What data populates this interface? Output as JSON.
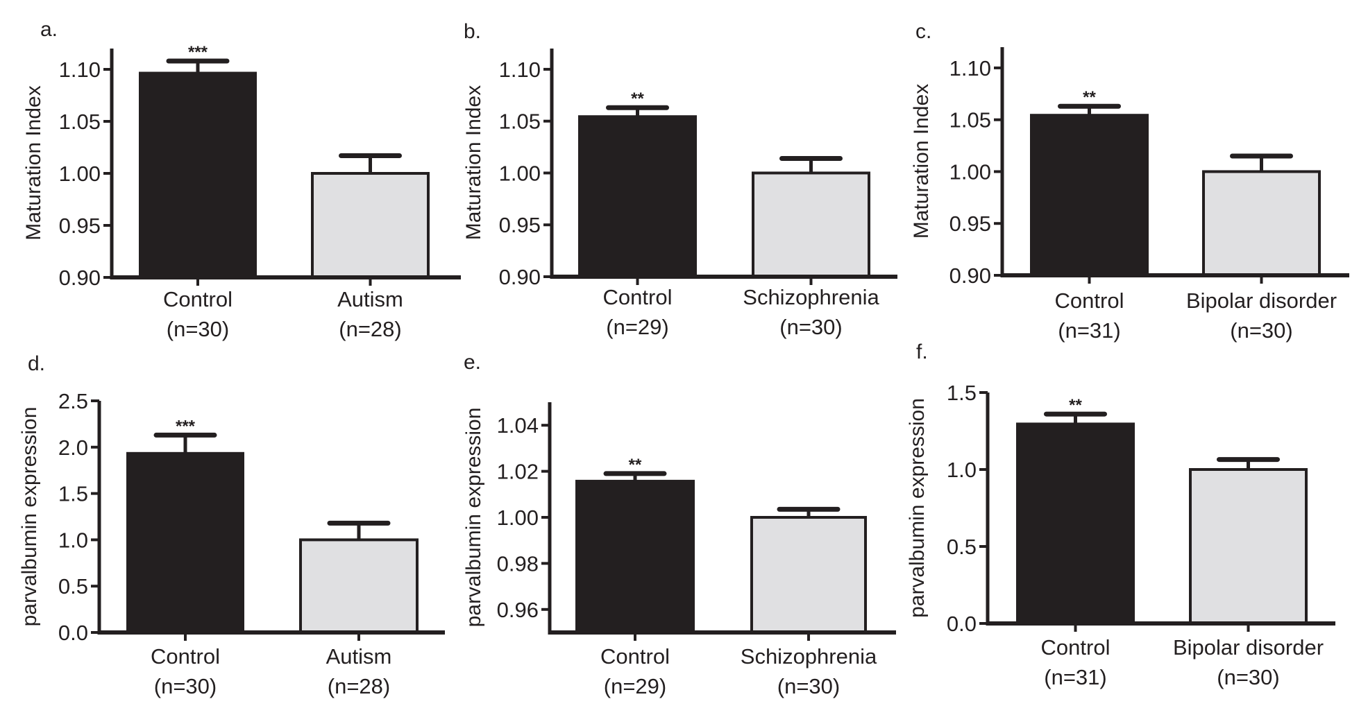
{
  "figure": {
    "colors": {
      "control": "#231f20",
      "patient": "#e0e0e2",
      "stroke": "#231f20"
    }
  },
  "chart_data": [
    {
      "panel": "a.",
      "type": "bar",
      "ylabel": "Maturation Index",
      "ylim": [
        0.9,
        1.12
      ],
      "yticks": [
        0.9,
        0.95,
        1.0,
        1.05,
        1.1
      ],
      "ytick_labels": [
        "0.90",
        "0.95",
        "1.00",
        "1.05",
        "1.10"
      ],
      "categories": [
        "Control",
        "Autism"
      ],
      "n_labels": [
        "(n=30)",
        "(n=28)"
      ],
      "values": [
        1.097,
        1.0
      ],
      "errors": [
        0.011,
        0.017
      ],
      "significance": [
        "***",
        ""
      ]
    },
    {
      "panel": "b.",
      "type": "bar",
      "ylabel": "Maturation Index",
      "ylim": [
        0.9,
        1.12
      ],
      "yticks": [
        0.9,
        0.95,
        1.0,
        1.05,
        1.1
      ],
      "ytick_labels": [
        "0.90",
        "0.95",
        "1.00",
        "1.05",
        "1.10"
      ],
      "categories": [
        "Control",
        "Schizophrenia"
      ],
      "n_labels": [
        "(n=29)",
        "(n=30)"
      ],
      "values": [
        1.055,
        1.0
      ],
      "errors": [
        0.008,
        0.014
      ],
      "significance": [
        "**",
        ""
      ]
    },
    {
      "panel": "c.",
      "type": "bar",
      "ylabel": "Maturation Index",
      "ylim": [
        0.9,
        1.12
      ],
      "yticks": [
        0.9,
        0.95,
        1.0,
        1.05,
        1.1
      ],
      "ytick_labels": [
        "0.90",
        "0.95",
        "1.00",
        "1.05",
        "1.10"
      ],
      "categories": [
        "Control",
        "Bipolar disorder"
      ],
      "n_labels": [
        "(n=31)",
        "(n=30)"
      ],
      "values": [
        1.055,
        1.0
      ],
      "errors": [
        0.008,
        0.015
      ],
      "significance": [
        "**",
        ""
      ]
    },
    {
      "panel": "d.",
      "type": "bar",
      "ylabel": "parvalbumin expression",
      "ylim": [
        0.0,
        2.5
      ],
      "yticks": [
        0.0,
        0.5,
        1.0,
        1.5,
        2.0,
        2.5
      ],
      "ytick_labels": [
        "0.0",
        "0.5",
        "1.0",
        "1.5",
        "2.0",
        "2.5"
      ],
      "categories": [
        "Control",
        "Autism"
      ],
      "n_labels": [
        "(n=30)",
        "(n=28)"
      ],
      "values": [
        1.94,
        1.0
      ],
      "errors": [
        0.19,
        0.18
      ],
      "significance": [
        "***",
        ""
      ]
    },
    {
      "panel": "e.",
      "type": "bar",
      "ylabel": "parvalbumin expression",
      "ylim": [
        0.95,
        1.05
      ],
      "yticks": [
        0.96,
        0.98,
        1.0,
        1.02,
        1.04
      ],
      "ytick_labels": [
        "0.96",
        "0.98",
        "1.00",
        "1.02",
        "1.04"
      ],
      "categories": [
        "Control",
        "Schizophrenia"
      ],
      "n_labels": [
        "(n=29)",
        "(n=30)"
      ],
      "values": [
        1.016,
        1.0
      ],
      "errors": [
        0.003,
        0.0035
      ],
      "significance": [
        "**",
        ""
      ]
    },
    {
      "panel": "f.",
      "type": "bar",
      "ylabel": "parvalbumin expression",
      "ylim": [
        0.0,
        1.5
      ],
      "yticks": [
        0.0,
        0.5,
        1.0,
        1.5
      ],
      "ytick_labels": [
        "0.0",
        "0.5",
        "1.0",
        "1.5"
      ],
      "categories": [
        "Control",
        "Bipolar disorder"
      ],
      "n_labels": [
        "(n=31)",
        "(n=30)"
      ],
      "values": [
        1.3,
        1.0
      ],
      "errors": [
        0.06,
        0.065
      ],
      "significance": [
        "**",
        ""
      ]
    }
  ]
}
